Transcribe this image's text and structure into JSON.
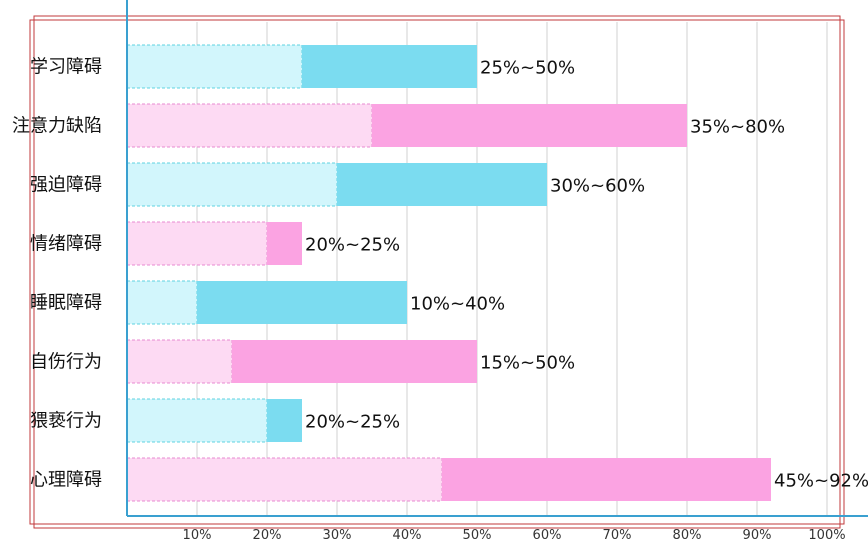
{
  "chart_data": {
    "type": "bar",
    "orientation": "horizontal",
    "categories": [
      "学习障碍",
      "注意力缺陷",
      "强迫障碍",
      "情绪障碍",
      "睡眠障碍",
      "自伤行为",
      "猥亵行为",
      "心理障碍"
    ],
    "ranges": [
      {
        "low": 25,
        "high": 50,
        "label": "25%~50%"
      },
      {
        "low": 35,
        "high": 80,
        "label": "35%~80%"
      },
      {
        "low": 30,
        "high": 60,
        "label": "30%~60%"
      },
      {
        "low": 20,
        "high": 25,
        "label": "20%~25%"
      },
      {
        "low": 10,
        "high": 40,
        "label": "10%~40%"
      },
      {
        "low": 15,
        "high": 50,
        "label": "15%~50%"
      },
      {
        "low": 20,
        "high": 25,
        "label": "20%~25%"
      },
      {
        "low": 45,
        "high": 92,
        "label": "45%~92%"
      }
    ],
    "xticks": [
      "10%",
      "20%",
      "30%",
      "40%",
      "50%",
      "60%",
      "70%",
      "80%",
      "90%",
      "100%"
    ],
    "xlim": [
      0,
      100
    ],
    "grid": true,
    "title": "",
    "xlabel": "",
    "ylabel": "",
    "colors": {
      "cyan_light": "#d2f6fc",
      "cyan_dark": "#7bdcf0",
      "cyan_border": "#5fd3e0",
      "pink_light": "#fddaf3",
      "pink_dark": "#fba3e2",
      "pink_border": "#e88ad0",
      "axis": "#3aa0d0",
      "grid": "#d0d0d0",
      "frame": "#c0393b"
    }
  }
}
